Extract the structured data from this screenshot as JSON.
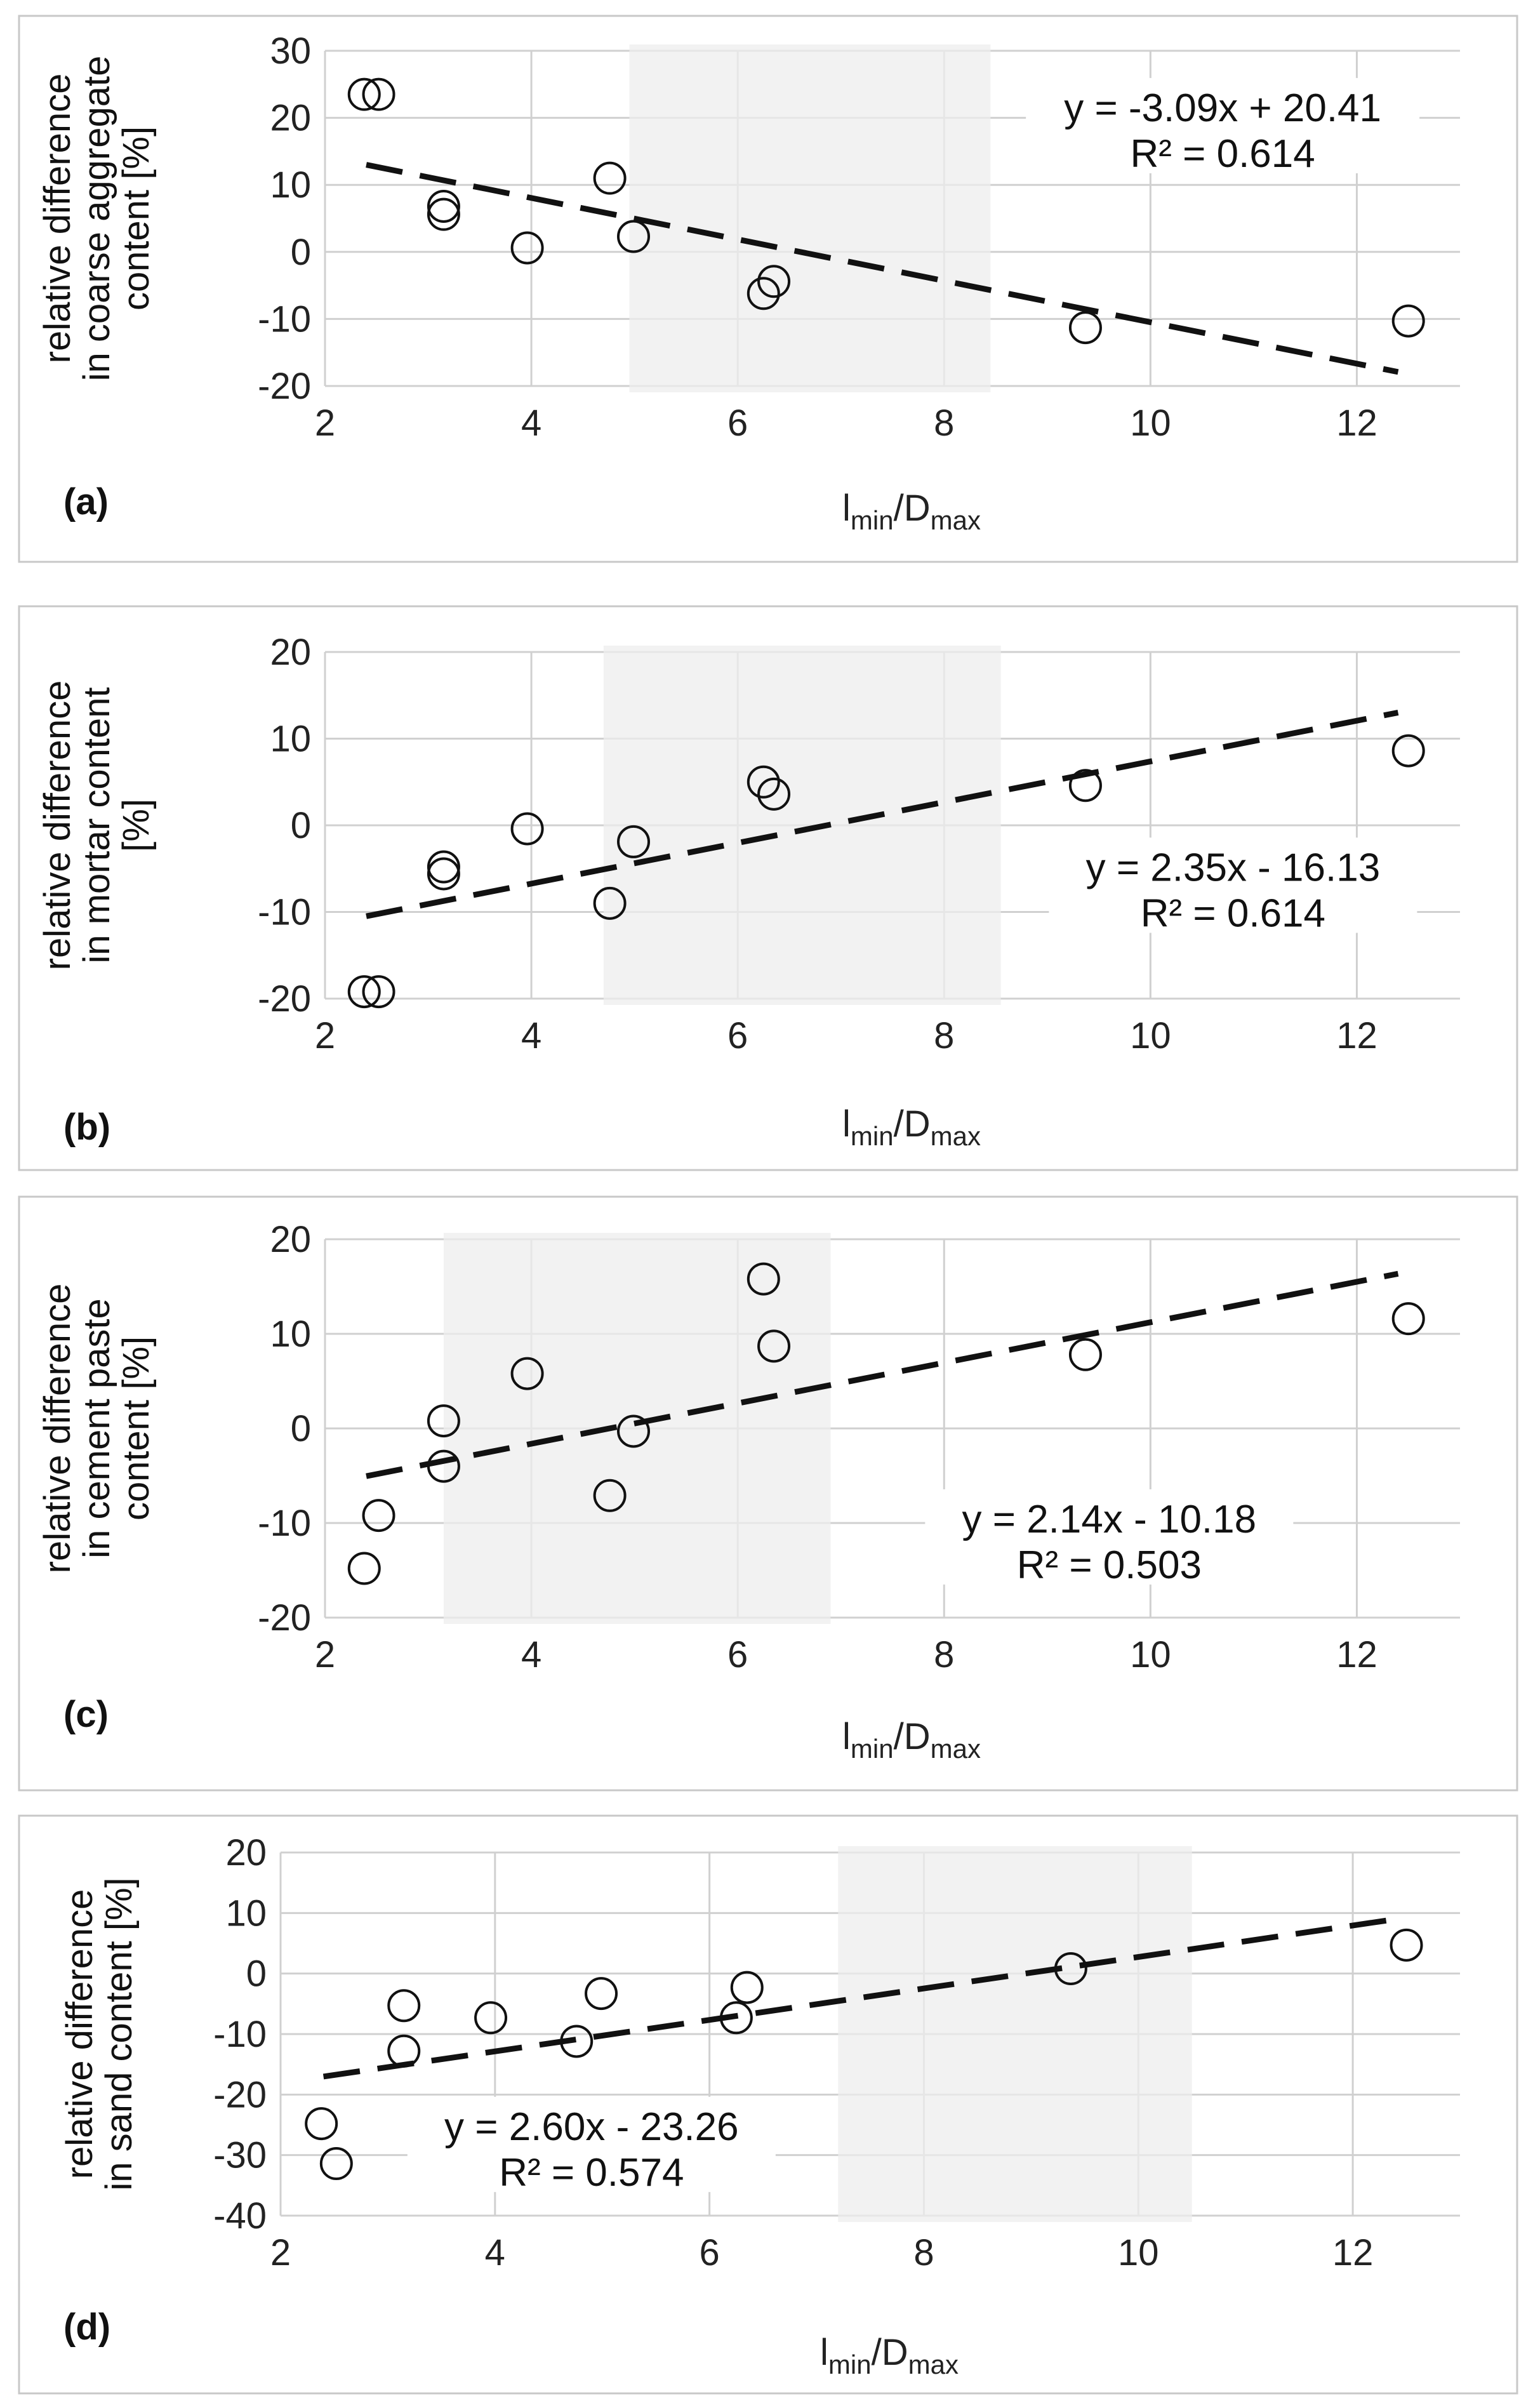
{
  "chart_data": [
    {
      "type": "scatter",
      "panel_label": "(a)",
      "ylabel_lines": [
        "relative difference",
        "in coarse aggregate",
        "content [%]"
      ],
      "xlabel_main": "l",
      "xlabel_sub1": "min",
      "xlabel_mid": "/D",
      "xlabel_sub2": "max",
      "xlim": [
        2,
        13
      ],
      "ylim": [
        -20,
        30
      ],
      "xticks": [
        2,
        4,
        6,
        8,
        10,
        12
      ],
      "xtick_labels": [
        "2",
        "4",
        "6",
        "8",
        "10",
        "12"
      ],
      "yticks": [
        -20,
        -10,
        0,
        10,
        20,
        30
      ],
      "ytick_labels": [
        "-20",
        "-10",
        "0",
        "10",
        "20",
        "30"
      ],
      "shaded_x_range": [
        4.95,
        8.45
      ],
      "trendline": {
        "slope": -3.09,
        "intercept": 20.41,
        "x_range": [
          2.4,
          12.4
        ]
      },
      "equation": "y = -3.09x + 20.41",
      "r2": "R² = 0.614",
      "equation_anchor": [
        10.7,
        19.5
      ],
      "points": [
        {
          "x": 2.38,
          "y": 23.5
        },
        {
          "x": 2.52,
          "y": 23.5
        },
        {
          "x": 3.15,
          "y": 6.8
        },
        {
          "x": 3.15,
          "y": 5.6
        },
        {
          "x": 3.96,
          "y": 0.6
        },
        {
          "x": 4.76,
          "y": 11.0
        },
        {
          "x": 4.99,
          "y": 2.3
        },
        {
          "x": 6.25,
          "y": -6.2
        },
        {
          "x": 6.35,
          "y": -4.4
        },
        {
          "x": 9.37,
          "y": -11.3
        },
        {
          "x": 12.5,
          "y": -10.3
        }
      ]
    },
    {
      "type": "scatter",
      "panel_label": "(b)",
      "ylabel_lines": [
        "relative difference",
        "in mortar content",
        "[%]"
      ],
      "xlabel_main": "l",
      "xlabel_sub1": "min",
      "xlabel_mid": "/D",
      "xlabel_sub2": "max",
      "xlim": [
        2,
        13
      ],
      "ylim": [
        -20,
        20
      ],
      "xticks": [
        2,
        4,
        6,
        8,
        10,
        12
      ],
      "xtick_labels": [
        "2",
        "4",
        "6",
        "8",
        "10",
        "12"
      ],
      "yticks": [
        -20,
        -10,
        0,
        10,
        20
      ],
      "ytick_labels": [
        "-20",
        "-10",
        "0",
        "10",
        "20"
      ],
      "shaded_x_range": [
        4.7,
        8.55
      ],
      "trendline": {
        "slope": 2.35,
        "intercept": -16.13,
        "x_range": [
          2.4,
          12.4
        ]
      },
      "equation": "y = 2.35x - 16.13",
      "r2": "R² = 0.614",
      "equation_anchor": [
        10.8,
        -6.4
      ],
      "points": [
        {
          "x": 2.38,
          "y": -19.2
        },
        {
          "x": 2.52,
          "y": -19.2
        },
        {
          "x": 3.15,
          "y": -4.8
        },
        {
          "x": 3.15,
          "y": -5.6
        },
        {
          "x": 3.96,
          "y": -0.4
        },
        {
          "x": 4.76,
          "y": -9.0
        },
        {
          "x": 4.99,
          "y": -1.9
        },
        {
          "x": 6.25,
          "y": 5.0
        },
        {
          "x": 6.35,
          "y": 3.6
        },
        {
          "x": 9.37,
          "y": 4.6
        },
        {
          "x": 12.5,
          "y": 8.6
        }
      ]
    },
    {
      "type": "scatter",
      "panel_label": "(c)",
      "ylabel_lines": [
        "relative difference",
        "in cement paste",
        "content [%]"
      ],
      "xlabel_main": "l",
      "xlabel_sub1": "min",
      "xlabel_mid": "/D",
      "xlabel_sub2": "max",
      "xlim": [
        2,
        13
      ],
      "ylim": [
        -20,
        20
      ],
      "xticks": [
        2,
        4,
        6,
        8,
        10,
        12
      ],
      "xtick_labels": [
        "2",
        "4",
        "6",
        "8",
        "10",
        "12"
      ],
      "yticks": [
        -20,
        -10,
        0,
        10,
        20
      ],
      "ytick_labels": [
        "-20",
        "-10",
        "0",
        "10",
        "20"
      ],
      "shaded_x_range": [
        3.15,
        6.9
      ],
      "trendline": {
        "slope": 2.14,
        "intercept": -10.18,
        "x_range": [
          2.4,
          12.4
        ]
      },
      "equation": "y = 2.14x - 10.18",
      "r2": "R² = 0.503",
      "equation_anchor": [
        9.6,
        -11.0
      ],
      "points": [
        {
          "x": 2.38,
          "y": -14.8
        },
        {
          "x": 2.52,
          "y": -9.2
        },
        {
          "x": 3.15,
          "y": 0.8
        },
        {
          "x": 3.15,
          "y": -4.0
        },
        {
          "x": 3.96,
          "y": 5.8
        },
        {
          "x": 4.76,
          "y": -7.1
        },
        {
          "x": 4.99,
          "y": -0.3
        },
        {
          "x": 6.25,
          "y": 15.8
        },
        {
          "x": 6.35,
          "y": 8.7
        },
        {
          "x": 9.37,
          "y": 7.8
        },
        {
          "x": 12.5,
          "y": 11.6
        }
      ]
    },
    {
      "type": "scatter",
      "panel_label": "(d)",
      "ylabel_lines": [
        "relative difference",
        "in sand content [%]"
      ],
      "xlabel_main": "l",
      "xlabel_sub1": "min",
      "xlabel_mid": "/D",
      "xlabel_sub2": "max",
      "xlim": [
        2,
        13
      ],
      "ylim": [
        -40,
        20
      ],
      "xticks": [
        2,
        4,
        6,
        8,
        10,
        12
      ],
      "xtick_labels": [
        "2",
        "4",
        "6",
        "8",
        "10",
        "12"
      ],
      "yticks": [
        -40,
        -30,
        -20,
        -10,
        0,
        10,
        20
      ],
      "ytick_labels": [
        "-40",
        "-30",
        "-20",
        "-10",
        "0",
        "10",
        "20"
      ],
      "shaded_x_range": [
        7.2,
        10.5
      ],
      "trendline": {
        "slope": 2.6,
        "intercept": -23.26,
        "x_range": [
          2.4,
          12.4
        ]
      },
      "equation": "y = 2.60x - 23.26",
      "r2": "R² = 0.574",
      "equation_anchor": [
        4.9,
        -27.5
      ],
      "points": [
        {
          "x": 2.38,
          "y": -24.8
        },
        {
          "x": 2.52,
          "y": -31.4
        },
        {
          "x": 3.15,
          "y": -5.3
        },
        {
          "x": 3.15,
          "y": -12.8
        },
        {
          "x": 3.96,
          "y": -7.3
        },
        {
          "x": 4.76,
          "y": -11.2
        },
        {
          "x": 4.99,
          "y": -3.3
        },
        {
          "x": 6.25,
          "y": -7.3
        },
        {
          "x": 6.35,
          "y": -2.3
        },
        {
          "x": 9.37,
          "y": 0.8
        },
        {
          "x": 12.5,
          "y": 4.7
        }
      ]
    }
  ],
  "colors": {
    "trend_dark": "#111111",
    "trend_in_shade": "#404040",
    "point_in_shade": "#505050"
  }
}
